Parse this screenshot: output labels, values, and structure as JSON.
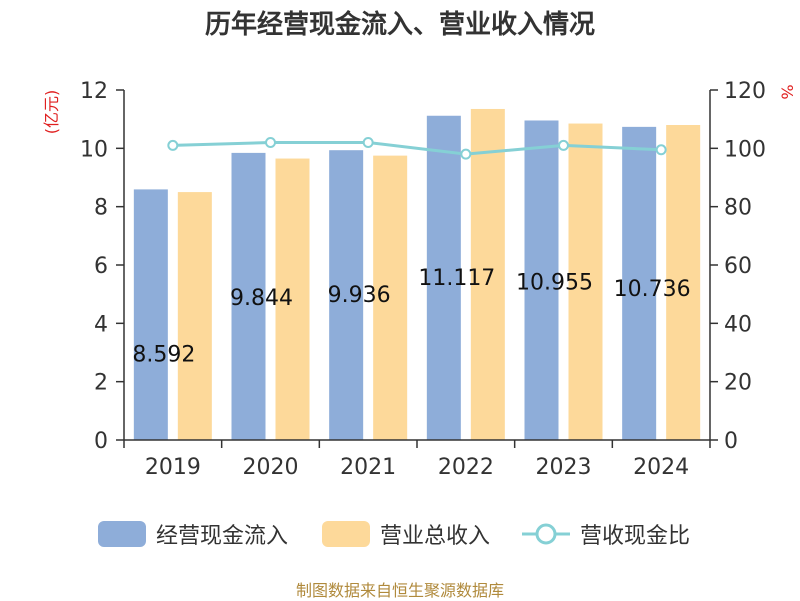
{
  "title": "历年经营现金流入、营业收入情况",
  "left_unit": "(亿元)",
  "right_unit": "%",
  "source": "制图数据来自恒生聚源数据库",
  "colors": {
    "cash_inflow": "#8eadd9",
    "revenue": "#fdd99a",
    "ratio_line": "#85d0d5",
    "axis": "#333333",
    "unit_text": "#e02020",
    "source_text": "#b08a3c"
  },
  "legend": [
    {
      "label": "经营现金流入",
      "icon": "bar-swatch-blue"
    },
    {
      "label": "营业总收入",
      "icon": "bar-swatch-yellow"
    },
    {
      "label": "营收现金比",
      "icon": "line-circle-marker"
    }
  ],
  "chart_data": {
    "type": "bar",
    "categories": [
      "2019",
      "2020",
      "2021",
      "2022",
      "2023",
      "2024"
    ],
    "series": [
      {
        "name": "经营现金流入",
        "type": "bar",
        "axis": "left",
        "values": [
          8.592,
          9.844,
          9.936,
          11.117,
          10.955,
          10.736
        ]
      },
      {
        "name": "营业总收入",
        "type": "bar",
        "axis": "left",
        "values": [
          8.5,
          9.65,
          9.75,
          11.35,
          10.85,
          10.8
        ]
      },
      {
        "name": "营收现金比",
        "type": "line",
        "axis": "right",
        "values": [
          101,
          102,
          102,
          98,
          101,
          99.5
        ]
      }
    ],
    "data_labels": [
      "8.592",
      "9.844",
      "9.936",
      "11.117",
      "10.955",
      "10.736"
    ],
    "y_left": {
      "min": 0,
      "max": 12,
      "ticks": [
        "0",
        "2",
        "4",
        "6",
        "8",
        "10",
        "12"
      ]
    },
    "y_right": {
      "min": 0,
      "max": 120,
      "ticks": [
        "0",
        "20",
        "40",
        "60",
        "80",
        "100",
        "120"
      ]
    },
    "grid": false,
    "legend_position": "bottom"
  }
}
